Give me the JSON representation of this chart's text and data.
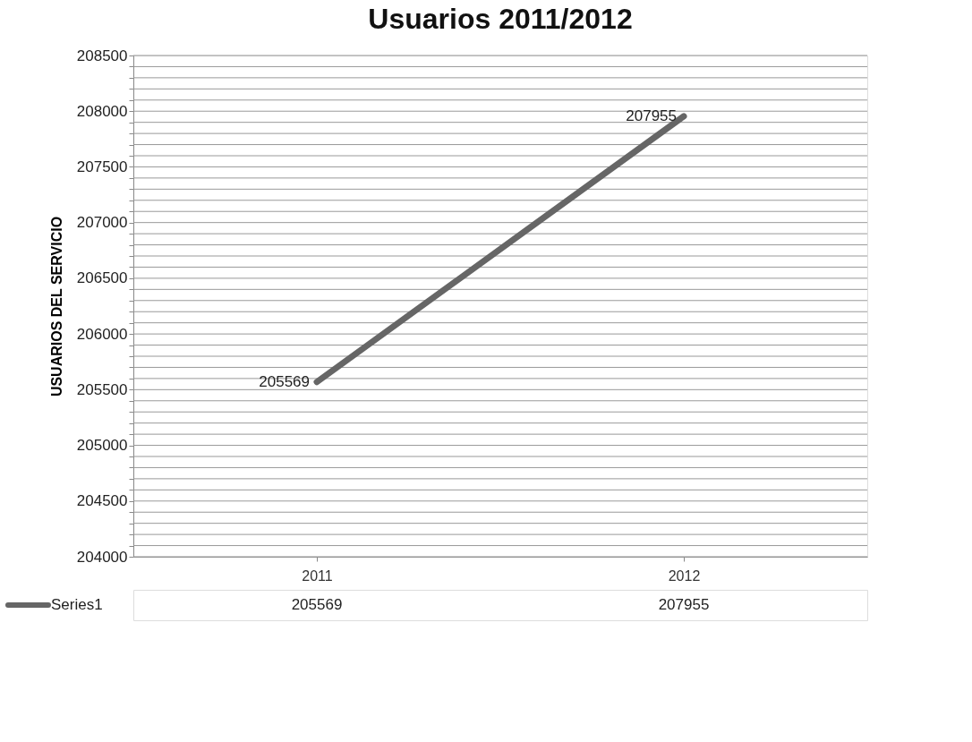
{
  "chart_data": {
    "type": "line",
    "title": "Usuarios 2011/2012",
    "ylabel": "USUARIOS DEL SERVICIO",
    "categories": [
      "2011",
      "2012"
    ],
    "series": [
      {
        "name": "Series1",
        "color": "#666666",
        "values": [
          205569,
          207955
        ],
        "value_labels": [
          "205569",
          "207955"
        ]
      }
    ],
    "ylim": [
      204000,
      208500
    ],
    "yticks": [
      204000,
      {
        "value": 204100,
        "label": null
      },
      {
        "value": 204200,
        "label": null
      },
      {
        "value": 204300,
        "label": null
      },
      {
        "value": 204400,
        "label": null
      },
      204500,
      {
        "value": 204600,
        "label": null
      },
      {
        "value": 204700,
        "label": null
      },
      {
        "value": 204800,
        "label": null
      },
      {
        "value": 204900,
        "label": null
      },
      205000,
      {
        "value": 205100,
        "label": null
      },
      {
        "value": 205200,
        "label": null
      },
      {
        "value": 205300,
        "label": null
      },
      {
        "value": 205400,
        "label": null
      },
      205500,
      {
        "value": 205600,
        "label": null
      },
      {
        "value": 205700,
        "label": null
      },
      {
        "value": 205800,
        "label": null
      },
      {
        "value": 205900,
        "label": null
      },
      206000,
      {
        "value": 206100,
        "label": null
      },
      {
        "value": 206200,
        "label": null
      },
      {
        "value": 206300,
        "label": null
      },
      {
        "value": 206400,
        "label": null
      },
      206500,
      {
        "value": 206600,
        "label": null
      },
      {
        "value": 206700,
        "label": null
      },
      {
        "value": 206800,
        "label": null
      },
      {
        "value": 206900,
        "label": null
      },
      207000,
      {
        "value": 207100,
        "label": null
      },
      {
        "value": 207200,
        "label": null
      },
      {
        "value": 207300,
        "label": null
      },
      {
        "value": 207400,
        "label": null
      },
      207500,
      {
        "value": 207600,
        "label": null
      },
      {
        "value": 207700,
        "label": null
      },
      {
        "value": 207800,
        "label": null
      },
      {
        "value": 207900,
        "label": null
      },
      208000,
      {
        "value": 208100,
        "label": null
      },
      {
        "value": 208200,
        "label": null
      },
      {
        "value": 208300,
        "label": null
      },
      {
        "value": 208400,
        "label": null
      },
      208500
    ],
    "grid": "y",
    "data_labels": true,
    "legend": "bottom left",
    "marker": "none",
    "line_style": "solid"
  }
}
